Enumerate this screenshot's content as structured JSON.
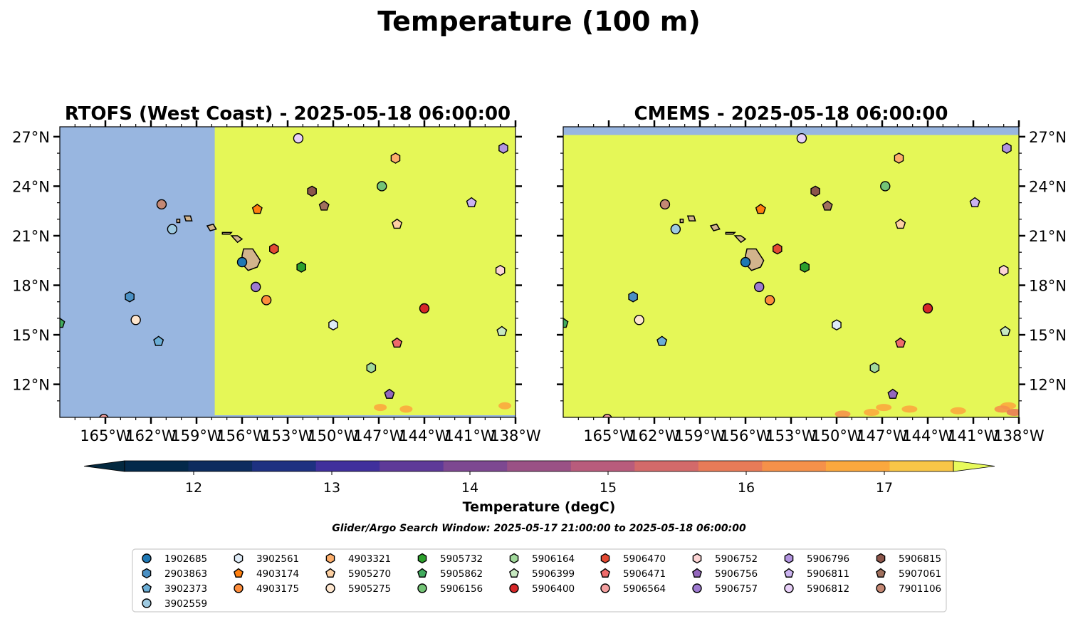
{
  "figure": {
    "title": "Temperature (100 m)",
    "search_window": "Glider/Argo Search Window: 2025-05-17 21:00:00 to 2025-05-18 06:00:00"
  },
  "panels": [
    {
      "id": "rtofs",
      "title": "RTOFS (West Coast) - 2025-05-18 06:00:00",
      "lat_labels_side": "left",
      "model_west_boundary_lon": -157.8
    },
    {
      "id": "cmems",
      "title": "CMEMS - 2025-05-18 06:00:00",
      "lat_labels_side": "right",
      "model_north_boundary_lat": 27.1
    }
  ],
  "map": {
    "lon_range": [
      -168,
      -138
    ],
    "lat_range": [
      10,
      27.6
    ],
    "lon_ticks": [
      {
        "value": -165,
        "label": "165°W"
      },
      {
        "value": -162,
        "label": "162°W"
      },
      {
        "value": -159,
        "label": "159°W"
      },
      {
        "value": -156,
        "label": "156°W"
      },
      {
        "value": -153,
        "label": "153°W"
      },
      {
        "value": -150,
        "label": "150°W"
      },
      {
        "value": -147,
        "label": "147°W"
      },
      {
        "value": -144,
        "label": "144°W"
      },
      {
        "value": -141,
        "label": "141°W"
      },
      {
        "value": -138,
        "label": "138°W"
      }
    ],
    "lat_ticks": [
      {
        "value": 27,
        "label": "27°N"
      },
      {
        "value": 24,
        "label": "24°N"
      },
      {
        "value": 21,
        "label": "21°N"
      },
      {
        "value": 18,
        "label": "18°N"
      },
      {
        "value": 15,
        "label": "15°N"
      },
      {
        "value": 12,
        "label": "12°N"
      }
    ],
    "no_data_color": "#98b6e0",
    "land_color": "#d2b48c",
    "field_color_max": "#e5f757"
  },
  "colorbar": {
    "label": "Temperature (degC)",
    "range": [
      11.5,
      17.5
    ],
    "ticks": [
      {
        "value": 12,
        "label": "12"
      },
      {
        "value": 13,
        "label": "13"
      },
      {
        "value": 14,
        "label": "14"
      },
      {
        "value": 15,
        "label": "15"
      },
      {
        "value": 16,
        "label": "16"
      },
      {
        "value": 17,
        "label": "17"
      }
    ],
    "bins": [
      "#03294a",
      "#0d2c5e",
      "#1e3181",
      "#40309c",
      "#5e3a98",
      "#7d4891",
      "#9a5185",
      "#b85c7c",
      "#d36a6a",
      "#e87b58",
      "#f5914a",
      "#fba83e",
      "#f8c647"
    ],
    "over_color": "#e8fa5b"
  },
  "warm_patches": [
    {
      "lon": -146.9,
      "lat": 10.6,
      "temp": 16.8
    },
    {
      "lon": -145.2,
      "lat": 10.5,
      "temp": 16.6
    },
    {
      "lon": -138.7,
      "lat": 10.7,
      "temp": 16.9
    },
    {
      "lon": -149.6,
      "lat": 10.2,
      "temp": 16.5
    },
    {
      "lon": -147.7,
      "lat": 10.3,
      "temp": 16.6
    },
    {
      "lon": -142.0,
      "lat": 10.4,
      "temp": 16.7
    },
    {
      "lon": -139.1,
      "lat": 10.5,
      "temp": 16.3
    },
    {
      "lon": -138.3,
      "lat": 10.3,
      "temp": 16.0
    }
  ],
  "islands": [
    {
      "name": "Hawaii",
      "points": [
        [
          -155.9,
          20.2
        ],
        [
          -155.3,
          20.2
        ],
        [
          -154.8,
          19.5
        ],
        [
          -155.0,
          19.1
        ],
        [
          -155.6,
          18.9
        ],
        [
          -156.0,
          19.3
        ],
        [
          -156.0,
          19.8
        ]
      ]
    },
    {
      "name": "Maui",
      "points": [
        [
          -156.7,
          21.0
        ],
        [
          -156.3,
          21.0
        ],
        [
          -156.0,
          20.8
        ],
        [
          -156.3,
          20.6
        ],
        [
          -156.5,
          20.8
        ]
      ]
    },
    {
      "name": "Molokai",
      "points": [
        [
          -157.3,
          21.2
        ],
        [
          -156.7,
          21.2
        ],
        [
          -156.8,
          21.1
        ],
        [
          -157.3,
          21.1
        ]
      ]
    },
    {
      "name": "Oahu",
      "points": [
        [
          -158.3,
          21.6
        ],
        [
          -157.9,
          21.7
        ],
        [
          -157.7,
          21.4
        ],
        [
          -158.1,
          21.3
        ]
      ]
    },
    {
      "name": "Kauai",
      "points": [
        [
          -159.8,
          22.2
        ],
        [
          -159.4,
          22.2
        ],
        [
          -159.3,
          21.9
        ],
        [
          -159.7,
          21.9
        ]
      ]
    },
    {
      "name": "Niihau",
      "points": [
        [
          -160.3,
          22.0
        ],
        [
          -160.1,
          22.0
        ],
        [
          -160.1,
          21.8
        ],
        [
          -160.3,
          21.8
        ]
      ]
    }
  ],
  "floats": [
    {
      "id": "1902685",
      "marker": "circle",
      "color": "#1f78b4",
      "lon": -156.0,
      "lat": 19.4
    },
    {
      "id": "2903863",
      "marker": "hexagon",
      "color": "#4a90c4",
      "lon": -163.4,
      "lat": 17.3
    },
    {
      "id": "3902373",
      "marker": "pentagon",
      "color": "#6baed6",
      "lon": -161.5,
      "lat": 14.6
    },
    {
      "id": "3902559",
      "marker": "circle",
      "color": "#9ecae1",
      "lon": -160.6,
      "lat": 21.4
    },
    {
      "id": "3902561",
      "marker": "hexagon",
      "color": "#deebf7",
      "lon": -150.0,
      "lat": 15.6
    },
    {
      "id": "4903174",
      "marker": "pentagon",
      "color": "#ff7f0e",
      "lon": -155.0,
      "lat": 22.6
    },
    {
      "id": "4903175",
      "marker": "circle",
      "color": "#fd8d3c",
      "lon": -154.4,
      "lat": 17.1
    },
    {
      "id": "4903321",
      "marker": "hexagon",
      "color": "#fdae6b",
      "lon": -145.9,
      "lat": 25.7
    },
    {
      "id": "5905270",
      "marker": "pentagon",
      "color": "#fdd0a2",
      "lon": -145.8,
      "lat": 21.7
    },
    {
      "id": "5905275",
      "marker": "circle",
      "color": "#fee6ce",
      "lon": -163.0,
      "lat": 15.9
    },
    {
      "id": "5905732",
      "marker": "hexagon",
      "color": "#2ca02c",
      "lon": -152.1,
      "lat": 19.1
    },
    {
      "id": "5905862",
      "marker": "pentagon",
      "color": "#41ab5d",
      "lon": -168.0,
      "lat": 15.7
    },
    {
      "id": "5906156",
      "marker": "circle",
      "color": "#74c476",
      "lon": -146.8,
      "lat": 24.0
    },
    {
      "id": "5906164",
      "marker": "hexagon",
      "color": "#a1d99b",
      "lon": -147.5,
      "lat": 13.0
    },
    {
      "id": "5906399",
      "marker": "pentagon",
      "color": "#c7e9c0",
      "lon": -138.9,
      "lat": 15.2
    },
    {
      "id": "5906400",
      "marker": "circle",
      "color": "#d62728",
      "lon": -144.0,
      "lat": 16.6
    },
    {
      "id": "5906470",
      "marker": "hexagon",
      "color": "#e34a33",
      "lon": -153.9,
      "lat": 20.2
    },
    {
      "id": "5906471",
      "marker": "pentagon",
      "color": "#ef6b6b",
      "lon": -145.8,
      "lat": 14.5
    },
    {
      "id": "5906564",
      "marker": "circle",
      "color": "#f4a0a0",
      "lon": -165.1,
      "lat": 9.9
    },
    {
      "id": "5906752",
      "marker": "hexagon",
      "color": "#fdd5d5",
      "lon": -139.0,
      "lat": 18.9
    },
    {
      "id": "5906756",
      "marker": "pentagon",
      "color": "#9467bd",
      "lon": -146.3,
      "lat": 11.4
    },
    {
      "id": "5906757",
      "marker": "circle",
      "color": "#9e7ad0",
      "lon": -155.1,
      "lat": 17.9
    },
    {
      "id": "5906796",
      "marker": "hexagon",
      "color": "#b294e0",
      "lon": -138.8,
      "lat": 26.3
    },
    {
      "id": "5906811",
      "marker": "pentagon",
      "color": "#cbb3f0",
      "lon": -140.9,
      "lat": 23.0
    },
    {
      "id": "5906812",
      "marker": "circle",
      "color": "#e8d0f8",
      "lon": -152.3,
      "lat": 26.9
    },
    {
      "id": "5906815",
      "marker": "hexagon",
      "color": "#8c564b",
      "lon": -151.4,
      "lat": 23.7
    },
    {
      "id": "5907061",
      "marker": "pentagon",
      "color": "#a0705d",
      "lon": -150.6,
      "lat": 22.8
    },
    {
      "id": "7901106",
      "marker": "circle",
      "color": "#c48874",
      "lon": -161.3,
      "lat": 22.9
    }
  ]
}
